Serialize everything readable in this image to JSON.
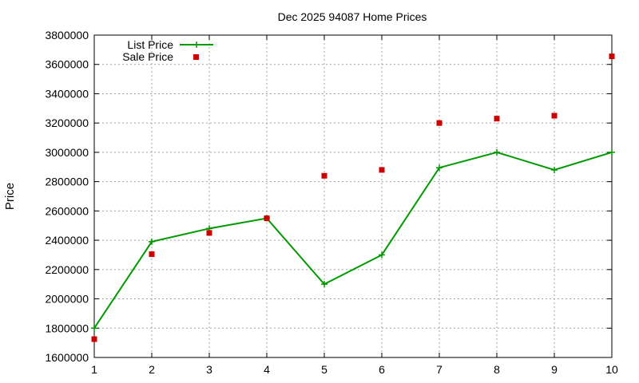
{
  "chart_data": {
    "type": "line",
    "title": "Dec 2025 94087 Home Prices",
    "xlabel": "",
    "ylabel": "Price",
    "xlim": [
      1,
      10
    ],
    "ylim": [
      1600000,
      3800000
    ],
    "xticks": [
      1,
      2,
      3,
      4,
      5,
      6,
      7,
      8,
      9,
      10
    ],
    "yticks": [
      1600000,
      1800000,
      2000000,
      2200000,
      2400000,
      2600000,
      2800000,
      3000000,
      3200000,
      3400000,
      3600000,
      3800000
    ],
    "grid": true,
    "legend_position": "top-left",
    "series": [
      {
        "name": "List Price",
        "style": "line-with-plus-markers",
        "color": "#009900",
        "x": [
          1,
          2,
          3,
          4,
          5,
          6,
          7,
          8,
          9,
          10
        ],
        "values": [
          1800000,
          2390000,
          2480000,
          2550000,
          2100000,
          2300000,
          2895000,
          3000000,
          2880000,
          3000000
        ]
      },
      {
        "name": "Sale Price",
        "style": "square-points",
        "color": "#cc0000",
        "x": [
          1,
          2,
          3,
          4,
          5,
          6,
          7,
          8,
          9,
          10
        ],
        "values": [
          1725000,
          2305000,
          2450000,
          2550000,
          2840000,
          2880000,
          3200000,
          3230000,
          3250000,
          3655000
        ]
      }
    ]
  }
}
